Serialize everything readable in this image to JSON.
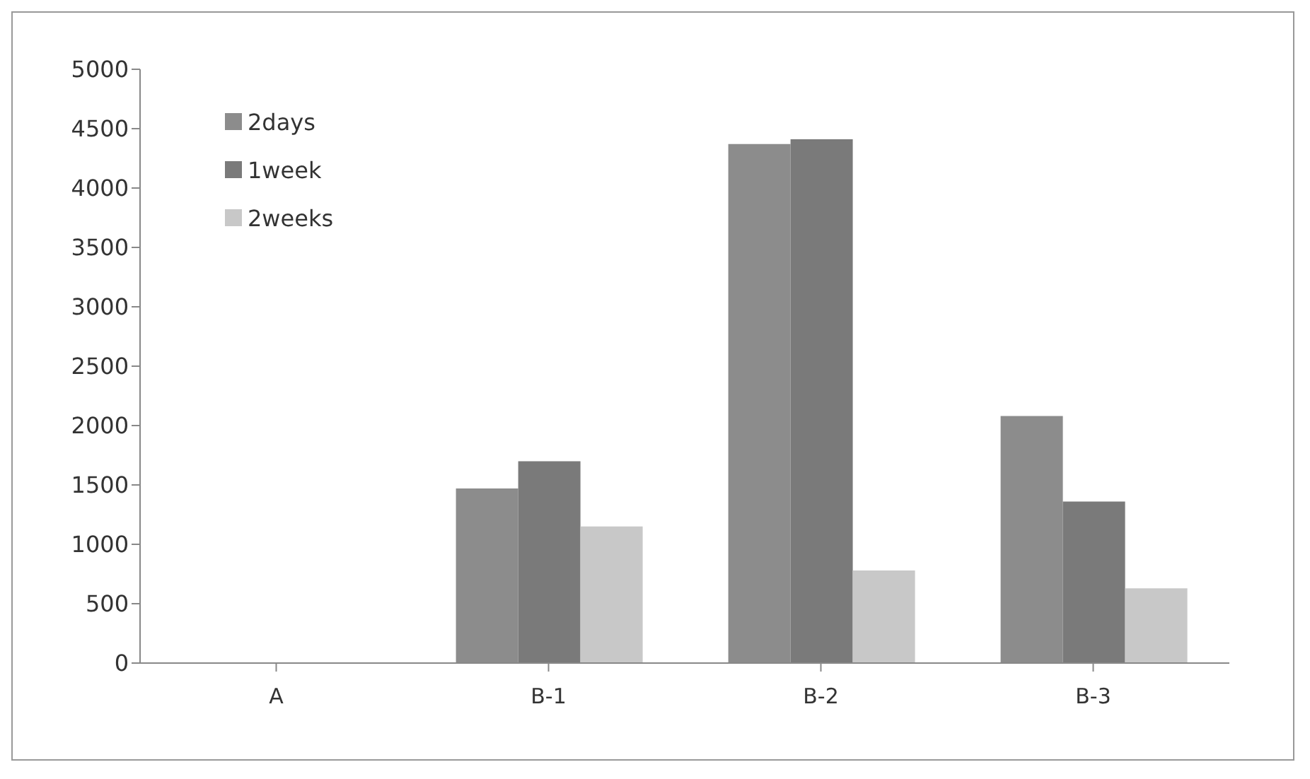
{
  "chart_data": {
    "type": "bar",
    "categories": [
      "A",
      "B-1",
      "B-2",
      "B-3"
    ],
    "series": [
      {
        "name": "2days",
        "color": "#8c8c8c",
        "values": [
          0,
          1470,
          4370,
          2080
        ]
      },
      {
        "name": "1week",
        "color": "#7a7a7a",
        "values": [
          0,
          1700,
          4410,
          1360
        ]
      },
      {
        "name": "2weeks",
        "color": "#c8c8c8",
        "values": [
          0,
          1150,
          780,
          630
        ]
      }
    ],
    "ylim": [
      0,
      5000
    ],
    "yticks": [
      0,
      500,
      1000,
      1500,
      2000,
      2500,
      3000,
      3500,
      4000,
      4500,
      5000
    ],
    "grid": false,
    "legend": "top left"
  }
}
